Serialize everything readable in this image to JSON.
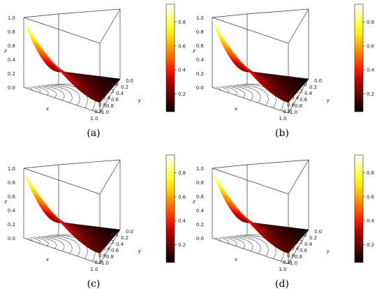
{
  "chart_data": [
    {
      "type": "surface3d",
      "caption": "(a)",
      "xlabel": "x",
      "ylabel": "y",
      "zlabel": "z",
      "x_ticks": [
        "0.0",
        "0.2",
        "0.4",
        "0.6",
        "0.8",
        "1.0"
      ],
      "y_ticks": [
        "0.0",
        "0.2",
        "0.4",
        "0.6",
        "0.8",
        "1.0"
      ],
      "z_ticks": [
        "0.0",
        "0.2",
        "0.4",
        "0.6",
        "0.8",
        "1.0"
      ],
      "x_range": [
        0,
        1
      ],
      "y_range": [
        0,
        1
      ],
      "z_range": [
        0,
        1
      ],
      "colorbar_ticks": [
        "0.2",
        "0.4",
        "0.6",
        "0.8"
      ],
      "colorbar_range": [
        0.05,
        0.95
      ],
      "colormap": "heat",
      "floor_contours": true,
      "surface_points": [
        {
          "x": 1.0,
          "y": 0.0,
          "z": 0.95
        },
        {
          "x": 0.0,
          "y": 0.0,
          "z": 0.2
        },
        {
          "x": 1.0,
          "y": 1.0,
          "z": 0.2
        },
        {
          "x": 0.0,
          "y": 1.0,
          "z": 0.0
        }
      ]
    },
    {
      "type": "surface3d",
      "caption": "(b)",
      "xlabel": "x",
      "ylabel": "y",
      "zlabel": "z",
      "x_ticks": [
        "0.0",
        "0.2",
        "0.4",
        "0.6",
        "0.8",
        "1.0"
      ],
      "y_ticks": [
        "0.0",
        "0.2",
        "0.4",
        "0.6",
        "0.8",
        "1.0"
      ],
      "z_ticks": [
        "0.0",
        "0.2",
        "0.4",
        "0.6",
        "0.8",
        "1.0"
      ],
      "x_range": [
        0,
        1
      ],
      "y_range": [
        0,
        1
      ],
      "z_range": [
        0,
        1
      ],
      "colorbar_ticks": [
        "0.2",
        "0.4",
        "0.6",
        "0.8"
      ],
      "colorbar_range": [
        0.05,
        0.95
      ],
      "colormap": "heat",
      "floor_contours": true,
      "surface_points": [
        {
          "x": 1.0,
          "y": 0.0,
          "z": 0.95
        },
        {
          "x": 0.0,
          "y": 0.0,
          "z": 0.2
        },
        {
          "x": 1.0,
          "y": 1.0,
          "z": 0.2
        },
        {
          "x": 0.0,
          "y": 1.0,
          "z": 0.0
        }
      ]
    },
    {
      "type": "surface3d",
      "caption": "(c)",
      "xlabel": "x",
      "ylabel": "y",
      "zlabel": "z",
      "x_ticks": [
        "0.0",
        "0.2",
        "0.4",
        "0.6",
        "0.8",
        "1.0"
      ],
      "y_ticks": [
        "0.0",
        "0.2",
        "0.4",
        "0.6",
        "0.8",
        "1.0"
      ],
      "z_ticks": [
        "0.0",
        "0.2",
        "0.4",
        "0.6",
        "0.8",
        "1.0"
      ],
      "x_range": [
        0,
        1
      ],
      "y_range": [
        0,
        1
      ],
      "z_range": [
        0,
        1
      ],
      "colorbar_ticks": [
        "0.2",
        "0.4",
        "0.6",
        "0.8"
      ],
      "colorbar_range": [
        0.05,
        0.95
      ],
      "colormap": "heat",
      "floor_contours": true,
      "surface_points": [
        {
          "x": 1.0,
          "y": 0.0,
          "z": 0.95
        },
        {
          "x": 0.0,
          "y": 0.0,
          "z": 0.2
        },
        {
          "x": 1.0,
          "y": 1.0,
          "z": 0.2
        },
        {
          "x": 0.0,
          "y": 1.0,
          "z": 0.0
        }
      ]
    },
    {
      "type": "surface3d",
      "caption": "(d)",
      "xlabel": "x",
      "ylabel": "y",
      "zlabel": "z",
      "x_ticks": [
        "0.0",
        "0.2",
        "0.4",
        "0.6",
        "0.8",
        "1.0"
      ],
      "y_ticks": [
        "0.0",
        "0.2",
        "0.4",
        "0.6",
        "0.8",
        "1.0"
      ],
      "z_ticks": [
        "0.0",
        "0.2",
        "0.4",
        "0.6",
        "0.8",
        "1.0"
      ],
      "x_range": [
        0,
        1
      ],
      "y_range": [
        0,
        1
      ],
      "z_range": [
        0,
        1
      ],
      "colorbar_ticks": [
        "0.2",
        "0.4",
        "0.6",
        "0.8"
      ],
      "colorbar_range": [
        0.05,
        0.95
      ],
      "colormap": "heat",
      "floor_contours": true,
      "surface_points": [
        {
          "x": 1.0,
          "y": 0.0,
          "z": 0.95
        },
        {
          "x": 0.0,
          "y": 0.0,
          "z": 0.2
        },
        {
          "x": 1.0,
          "y": 1.0,
          "z": 0.2
        },
        {
          "x": 0.0,
          "y": 1.0,
          "z": 0.0
        }
      ]
    }
  ]
}
